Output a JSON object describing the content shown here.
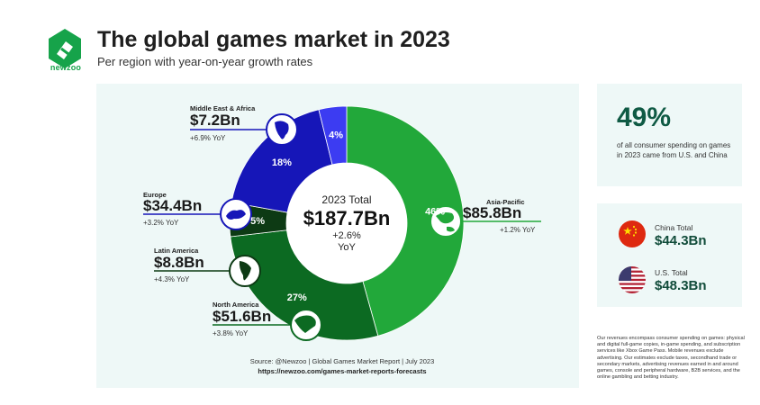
{
  "brand": {
    "name": "newzoo"
  },
  "title": "The global games market in 2023",
  "subtitle": "Per region with year-on-year growth rates",
  "chart_data": {
    "type": "pie",
    "title": "The global games market in 2023",
    "subtitle": "Per region with year-on-year growth rates",
    "center": {
      "label": "2023 Total",
      "value": "$187.7Bn",
      "yoy": "+2.6%",
      "yoy_unit": "YoY"
    },
    "slices": [
      {
        "name": "Asia-Pacific",
        "value": 85.8,
        "percent": 46,
        "percent_label": "46%",
        "value_label": "$85.8Bn",
        "yoy": "+1.2% YoY",
        "color": "#22a83a"
      },
      {
        "name": "North America",
        "value": 51.6,
        "percent": 27,
        "percent_label": "27%",
        "value_label": "$51.6Bn",
        "yoy": "+3.8% YoY",
        "color": "#0c6a22"
      },
      {
        "name": "Latin America",
        "value": 8.8,
        "percent": 5,
        "percent_label": "5%",
        "value_label": "$8.8Bn",
        "yoy": "+4.3% YoY",
        "color": "#0d3a14"
      },
      {
        "name": "Europe",
        "value": 34.4,
        "percent": 18,
        "percent_label": "18%",
        "value_label": "$34.4Bn",
        "yoy": "+3.2% YoY",
        "color": "#1616b8"
      },
      {
        "name": "Middle East & Africa",
        "value": 7.2,
        "percent": 4,
        "percent_label": "4%",
        "value_label": "$7.2Bn",
        "yoy": "+6.9% YoY",
        "color": "#3c3cf2"
      }
    ]
  },
  "source": {
    "text": "Source: @Newzoo | Global Games Market Report | July 2023",
    "url": "https://newzoo.com/games-market-reports-forecasts"
  },
  "share": {
    "percent": "49%",
    "text": "of all consumer spending on games in 2023 came from U.S. and China"
  },
  "totals": [
    {
      "name": "China Total",
      "value": "$44.3Bn",
      "icon": "china-flag-icon"
    },
    {
      "name": "U.S. Total",
      "value": "$48.3Bn",
      "icon": "us-flag-icon"
    }
  ],
  "footnote": "Our revenues encompass consumer spending on games: physical and digital full-game copies, in-game spending, and subscription services like Xbox Game Pass. Mobile revenues exclude advertising. Our estimates exclude taxes, secondhand trade or secondary markets, advertising revenues earned in and around games, console and peripheral hardware, B2B services, and the online gambling and betting industry.",
  "colors": {
    "accent": "#16a34a",
    "panel": "#eef8f7",
    "asia_pacific": "#22a83a",
    "north_america": "#0c6a22",
    "latin_america": "#0d3a14",
    "europe": "#1616b8",
    "middle_east_africa": "#3c3cf2"
  }
}
